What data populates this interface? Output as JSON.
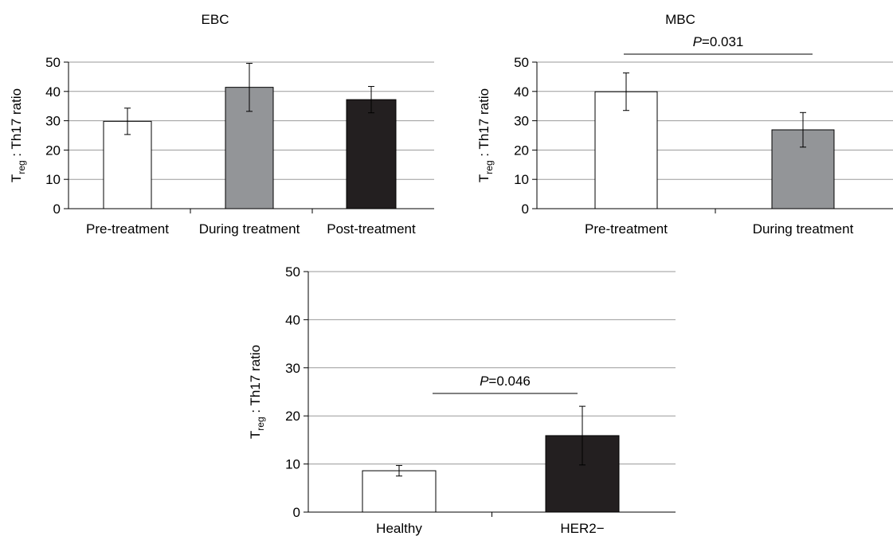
{
  "chart_data": [
    {
      "type": "bar",
      "title": "EBC",
      "ylabel_main": "T",
      "ylabel_sub": "reg",
      "ylabel_rest": " : Th17 ratio",
      "categories": [
        "Pre-treatment",
        "During treatment",
        "Post-treatment"
      ],
      "values": [
        29.8,
        41.4,
        37.2
      ],
      "errors": [
        4.5,
        8.2,
        4.5
      ],
      "colors": [
        "#ffffff",
        "#939598",
        "#231f20"
      ],
      "ylim": [
        0,
        50
      ],
      "yticks": [
        "0",
        "10",
        "20",
        "30",
        "40",
        "50"
      ],
      "grid": true,
      "significance": null
    },
    {
      "type": "bar",
      "title": "MBC",
      "ylabel_main": "T",
      "ylabel_sub": "reg",
      "ylabel_rest": " : Th17 ratio",
      "categories": [
        "Pre-treatment",
        "During treatment"
      ],
      "values": [
        39.9,
        26.9
      ],
      "errors": [
        6.4,
        5.9
      ],
      "colors": [
        "#ffffff",
        "#939598"
      ],
      "ylim": [
        0,
        50
      ],
      "yticks": [
        "0",
        "10",
        "20",
        "30",
        "40",
        "50"
      ],
      "grid": true,
      "significance": {
        "label_italic": "P",
        "label_rest": "=0.031",
        "from": 0,
        "to": 1
      }
    },
    {
      "type": "bar",
      "title": "",
      "ylabel_main": "T",
      "ylabel_sub": "reg",
      "ylabel_rest": " : Th17 ratio",
      "categories": [
        "Healthy",
        "HER2−"
      ],
      "values": [
        8.6,
        15.9
      ],
      "errors": [
        1.1,
        6.1
      ],
      "colors": [
        "#ffffff",
        "#231f20"
      ],
      "ylim": [
        0,
        50
      ],
      "yticks": [
        "0",
        "10",
        "20",
        "30",
        "40",
        "50"
      ],
      "grid": true,
      "significance": {
        "label_italic": "P",
        "label_rest": "=0.046",
        "from": 0,
        "to": 1
      }
    }
  ]
}
